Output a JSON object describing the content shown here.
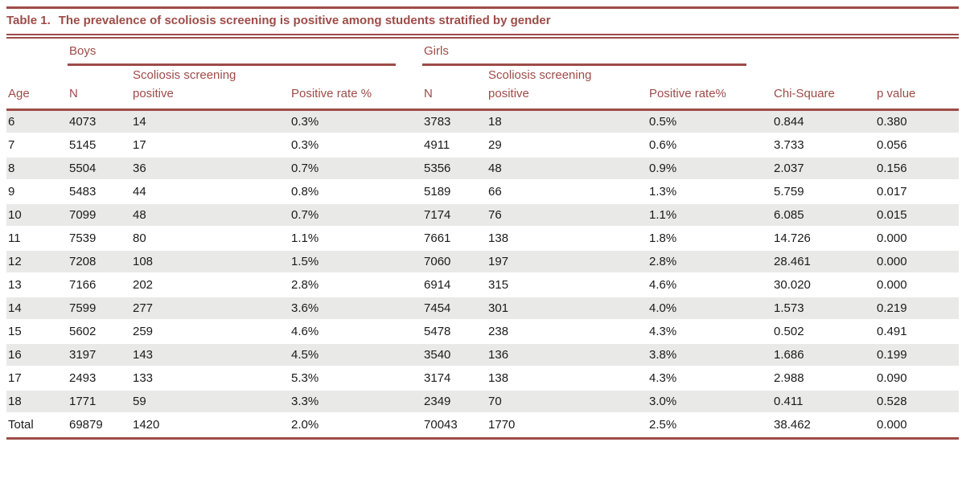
{
  "colors": {
    "accent_maroon": "#9d4c48",
    "row_stripe": "#e9e9e7",
    "body_text": "#1b1b1b",
    "background": "#ffffff"
  },
  "table": {
    "title_label": "Table 1.",
    "title_text": "The prevalence of scoliosis screening is positive among students stratified by gender",
    "group_headers": {
      "boys": "Boys",
      "girls": "Girls"
    },
    "columns": [
      {
        "key": "age",
        "label": "Age"
      },
      {
        "key": "boys_n",
        "label": "N"
      },
      {
        "key": "boys_screening_positive",
        "label": "Scoliosis screening positive"
      },
      {
        "key": "boys_positive_rate",
        "label": "Positive rate %"
      },
      {
        "key": "girls_n",
        "label": "N"
      },
      {
        "key": "girls_screening_positive",
        "label": "Scoliosis screening positive"
      },
      {
        "key": "girls_positive_rate",
        "label": "Positive rate%"
      },
      {
        "key": "chi_square",
        "label": "Chi-Square"
      },
      {
        "key": "p_value",
        "label": "p value"
      }
    ],
    "rows": [
      [
        "6",
        "4073",
        "14",
        "0.3%",
        "3783",
        "18",
        "0.5%",
        "0.844",
        "0.380"
      ],
      [
        "7",
        "5145",
        "17",
        "0.3%",
        "4911",
        "29",
        "0.6%",
        "3.733",
        "0.056"
      ],
      [
        "8",
        "5504",
        "36",
        "0.7%",
        "5356",
        "48",
        "0.9%",
        "2.037",
        "0.156"
      ],
      [
        "9",
        "5483",
        "44",
        "0.8%",
        "5189",
        "66",
        "1.3%",
        "5.759",
        "0.017"
      ],
      [
        "10",
        "7099",
        "48",
        "0.7%",
        "7174",
        "76",
        "1.1%",
        "6.085",
        "0.015"
      ],
      [
        "11",
        "7539",
        "80",
        "1.1%",
        "7661",
        "138",
        "1.8%",
        "14.726",
        "0.000"
      ],
      [
        "12",
        "7208",
        "108",
        "1.5%",
        "7060",
        "197",
        "2.8%",
        "28.461",
        "0.000"
      ],
      [
        "13",
        "7166",
        "202",
        "2.8%",
        "6914",
        "315",
        "4.6%",
        "30.020",
        "0.000"
      ],
      [
        "14",
        "7599",
        "277",
        "3.6%",
        "7454",
        "301",
        "4.0%",
        "1.573",
        "0.219"
      ],
      [
        "15",
        "5602",
        "259",
        "4.6%",
        "5478",
        "238",
        "4.3%",
        "0.502",
        "0.491"
      ],
      [
        "16",
        "3197",
        "143",
        "4.5%",
        "3540",
        "136",
        "3.8%",
        "1.686",
        "0.199"
      ],
      [
        "17",
        "2493",
        "133",
        "5.3%",
        "3174",
        "138",
        "4.3%",
        "2.988",
        "0.090"
      ],
      [
        "18",
        "1771",
        "59",
        "3.3%",
        "2349",
        "70",
        "3.0%",
        "0.411",
        "0.528"
      ],
      [
        "Total",
        "69879",
        "1420",
        "2.0%",
        "70043",
        "1770",
        "2.5%",
        "38.462",
        "0.000"
      ]
    ]
  }
}
